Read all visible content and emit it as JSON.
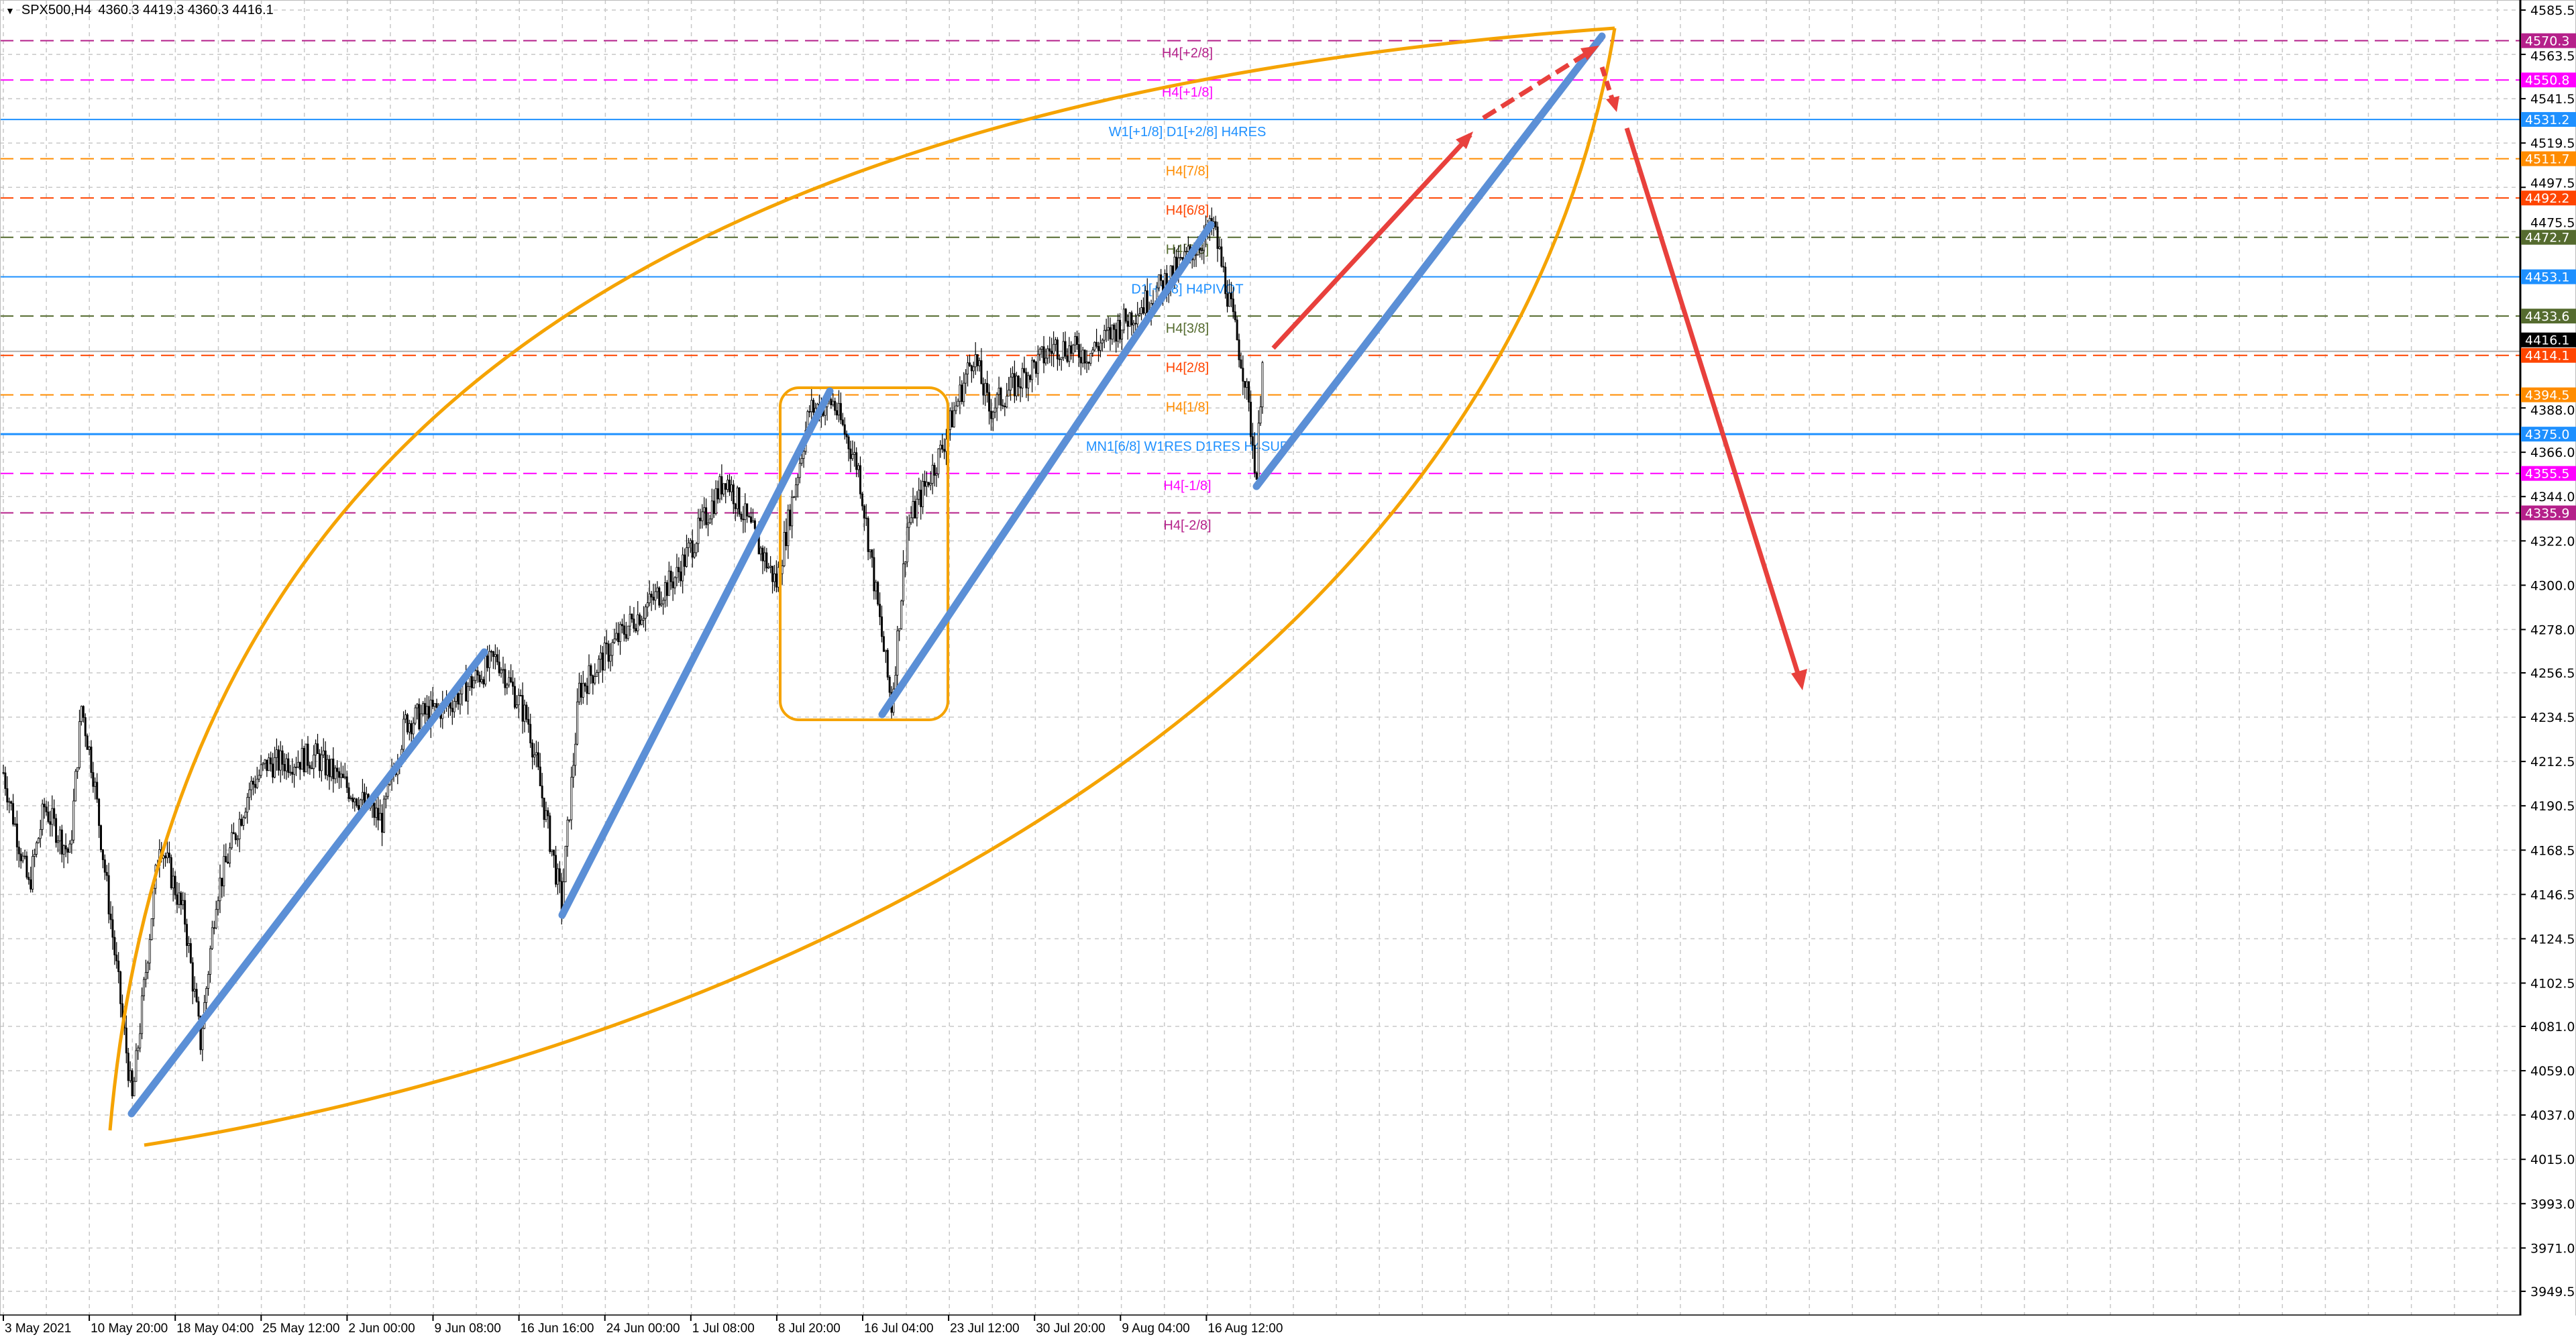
{
  "header": {
    "symbol": "SPX500,H4",
    "ohlc": "4360.3 4419.3 4360.3 4416.1"
  },
  "price_axis": {
    "ticks": [
      4585.5,
      4563.5,
      4541.5,
      4519.5,
      4497.5,
      4475.5,
      4388.0,
      4366.0,
      4344.0,
      4322.0,
      4300.0,
      4278.0,
      4256.5,
      4234.5,
      4212.5,
      4190.5,
      4168.5,
      4146.5,
      4124.5,
      4102.5,
      4081.0,
      4059.0,
      4037.0,
      4015.0,
      3993.0,
      3971.0,
      3949.5
    ],
    "current_price": "4416.1"
  },
  "time_axis": {
    "labels": [
      "3 May 2021",
      "10 May 20:00",
      "18 May 04:00",
      "25 May 12:00",
      "2 Jun 00:00",
      "9 Jun 08:00",
      "16 Jun 16:00",
      "24 Jun 00:00",
      "1 Jul 08:00",
      "8 Jul 20:00",
      "16 Jul 04:00",
      "23 Jul 12:00",
      "30 Jul 20:00",
      "9 Aug 04:00",
      "16 Aug 12:00"
    ]
  },
  "levels": [
    {
      "price": "4570.3",
      "label": "H4[+2/8]",
      "color": "#b5208a",
      "style": "dashed"
    },
    {
      "price": "4550.8",
      "label": "H4[+1/8]",
      "color": "#ff00ff",
      "style": "dashed"
    },
    {
      "price": "4531.2",
      "label": "W1[+1/8] D1[+2/8] H4RES",
      "color": "#1e90ff",
      "style": "solid"
    },
    {
      "price": "4511.7",
      "label": "H4[7/8]",
      "color": "#ff8c00",
      "style": "dashed"
    },
    {
      "price": "4492.2",
      "label": "H4[6/8]",
      "color": "#ff4500",
      "style": "dashed"
    },
    {
      "price": "4472.7",
      "label": "H4[5/8]",
      "color": "#556b2f",
      "style": "dashed"
    },
    {
      "price": "4453.1",
      "label": "D1[+1/8] H4PIVOT",
      "color": "#1e90ff",
      "style": "solid"
    },
    {
      "price": "4433.6",
      "label": "H4[3/8]",
      "color": "#556b2f",
      "style": "dashed"
    },
    {
      "price": "4414.1",
      "label": "H4[2/8]",
      "color": "#ff4500",
      "style": "dashed"
    },
    {
      "price": "4394.5",
      "label": "H4[1/8]",
      "color": "#ff8c00",
      "style": "dashed"
    },
    {
      "price": "4375.0",
      "label": "MN1[6/8] W1RES D1RES H4SUP",
      "color": "#1e90ff",
      "style": "solid"
    },
    {
      "price": "4355.5",
      "label": "H4[-1/8]",
      "color": "#ff00ff",
      "style": "dashed"
    },
    {
      "price": "4335.9",
      "label": "H4[-2/8]",
      "color": "#b5208a",
      "style": "dashed"
    }
  ],
  "chart_data": {
    "type": "candlestick",
    "symbol": "SPX500",
    "timeframe": "H4",
    "ylim": [
      3949.5,
      4585.5
    ],
    "grid": true,
    "price_path_approx": [
      [
        0,
        4207
      ],
      [
        13,
        4150
      ],
      [
        21,
        4190
      ],
      [
        34,
        4166
      ],
      [
        40,
        4240
      ],
      [
        46,
        4207
      ],
      [
        55,
        4134
      ],
      [
        66,
        4044
      ],
      [
        80,
        4174
      ],
      [
        93,
        4134
      ],
      [
        101,
        4073
      ],
      [
        109,
        4146
      ],
      [
        126,
        4199
      ],
      [
        135,
        4211
      ],
      [
        160,
        4215
      ],
      [
        194,
        4183
      ],
      [
        206,
        4232
      ],
      [
        227,
        4240
      ],
      [
        253,
        4264
      ],
      [
        269,
        4232
      ],
      [
        286,
        4142
      ],
      [
        295,
        4248
      ],
      [
        320,
        4280
      ],
      [
        345,
        4305
      ],
      [
        370,
        4354
      ],
      [
        396,
        4301
      ],
      [
        413,
        4387
      ],
      [
        425,
        4391
      ],
      [
        438,
        4358
      ],
      [
        455,
        4240
      ],
      [
        463,
        4329
      ],
      [
        480,
        4366
      ],
      [
        497,
        4415
      ],
      [
        505,
        4387
      ],
      [
        539,
        4419
      ],
      [
        556,
        4415
      ],
      [
        589,
        4444
      ],
      [
        620,
        4478
      ],
      [
        630,
        4431
      ],
      [
        636,
        4403
      ],
      [
        642,
        4354
      ],
      [
        645,
        4416
      ]
    ]
  },
  "colors": {
    "trendline": "#5b8fd6",
    "arrow": "#e8403c",
    "arc": "#f5a300",
    "current_price_bg": "#000000"
  }
}
